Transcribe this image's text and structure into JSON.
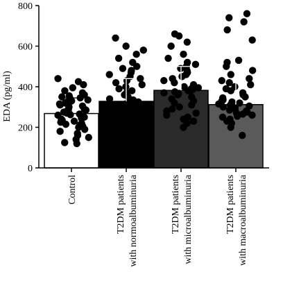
{
  "chart_data": {
    "type": "bar",
    "title": "",
    "xlabel": "",
    "ylabel": "EDA (pg/ml)",
    "ylim": [
      0,
      800
    ],
    "yticks": [
      0,
      200,
      400,
      600,
      800
    ],
    "grid": false,
    "categories": [
      {
        "lines": [
          "Control"
        ]
      },
      {
        "lines": [
          "T2DM patients",
          "with normoalbuminuria"
        ]
      },
      {
        "lines": [
          "T2DM patients",
          "with microalbuminuria"
        ]
      },
      {
        "lines": [
          "T2DM patients",
          "with macroalbuminuria"
        ]
      }
    ],
    "bars": [
      {
        "value": 268,
        "error_upper": 345,
        "fill": "#ffffff"
      },
      {
        "value": 328,
        "error_upper": 440,
        "fill": "#000000"
      },
      {
        "value": 382,
        "error_upper": 500,
        "fill": "#2a2a2a"
      },
      {
        "value": 312,
        "error_upper": 440,
        "fill": "#5a5a5a"
      }
    ],
    "points": [
      [
        120,
        125,
        140,
        150,
        160,
        170,
        180,
        190,
        200,
        205,
        210,
        215,
        220,
        225,
        230,
        235,
        240,
        245,
        250,
        255,
        260,
        262,
        265,
        270,
        275,
        280,
        285,
        290,
        295,
        300,
        305,
        310,
        315,
        320,
        325,
        330,
        335,
        340,
        345,
        350,
        355,
        360,
        370,
        380,
        395,
        410,
        425,
        440
      ],
      [
        170,
        180,
        190,
        200,
        210,
        220,
        230,
        240,
        250,
        255,
        260,
        265,
        270,
        275,
        280,
        285,
        290,
        295,
        300,
        305,
        310,
        315,
        320,
        325,
        330,
        335,
        340,
        350,
        360,
        370,
        380,
        390,
        400,
        410,
        420,
        430,
        440,
        450,
        460,
        470,
        480,
        490,
        500,
        520,
        540,
        560,
        580,
        600,
        640
      ],
      [
        200,
        220,
        230,
        240,
        250,
        260,
        270,
        280,
        290,
        300,
        310,
        320,
        330,
        340,
        350,
        360,
        365,
        370,
        375,
        380,
        385,
        390,
        395,
        400,
        410,
        420,
        430,
        440,
        450,
        460,
        470,
        480,
        490,
        500,
        510,
        520,
        540,
        560,
        600,
        620,
        650,
        660
      ],
      [
        160,
        200,
        220,
        230,
        240,
        250,
        255,
        260,
        265,
        270,
        275,
        280,
        285,
        290,
        295,
        300,
        305,
        310,
        315,
        320,
        325,
        330,
        335,
        340,
        345,
        350,
        360,
        370,
        380,
        390,
        400,
        410,
        420,
        430,
        440,
        460,
        480,
        500,
        520,
        530,
        630,
        680,
        720,
        740,
        760
      ]
    ]
  }
}
